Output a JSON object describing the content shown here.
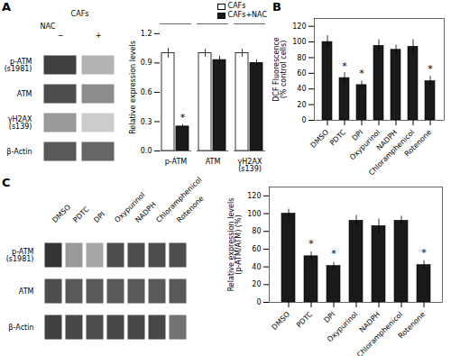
{
  "chart_data": [
    {
      "type": "heatmap",
      "title": "A",
      "annotations": [
        "CAFs"
      ],
      "xlabel": "NAC",
      "x": [
        "−",
        "+"
      ],
      "y": [
        "p-ATM\n(s1981)",
        "ATM",
        "γH2AX\n(s139)",
        "β-Actin"
      ],
      "values": [
        [
          0.25,
          0.7
        ],
        [
          0.3,
          0.55
        ],
        [
          0.6,
          0.8
        ],
        [
          0.35,
          0.4
        ]
      ],
      "zlim": [
        0,
        1
      ]
    },
    {
      "type": "bar",
      "categories": [
        "p-ATM",
        "ATM",
        "γH2AX\n(s139)"
      ],
      "series": [
        {
          "name": "CAFs",
          "color": "#ffffff",
          "values": [
            1.0,
            1.0,
            1.0
          ],
          "errors": [
            0.05,
            0.04,
            0.04
          ]
        },
        {
          "name": "CAFs+NAC",
          "color": "#1a1a1a",
          "values": [
            0.25,
            0.93,
            0.9
          ],
          "errors": [
            0.02,
            0.04,
            0.03
          ]
        }
      ],
      "ylabel": "Relative expression levels",
      "ylim": [
        0,
        1.3
      ],
      "yticks": [
        {
          "value": 0,
          "label": "0.0"
        },
        0.3,
        0.6,
        0.9,
        1.2
      ],
      "legend": "upper right",
      "annotations": [
        {
          "text": "*",
          "category": "p-ATM",
          "series": "CAFs+NAC",
          "y": 0.31
        }
      ]
    },
    {
      "type": "bar",
      "title": "B",
      "categories": [
        "DMSO",
        "PDTC",
        "DPI",
        "Oxypurinol",
        "NADPH",
        "Chloramphenicol",
        "Rotenone"
      ],
      "values": [
        100,
        54,
        45,
        95,
        90,
        94,
        50
      ],
      "errors": [
        8,
        7,
        5,
        8,
        6,
        9,
        6
      ],
      "color": "#1a1a1a",
      "ylabel": "DCF Fluorescence\n(% control cells)",
      "ylim": [
        0,
        130
      ],
      "yticks": [
        0,
        20,
        40,
        60,
        80,
        100,
        120
      ],
      "annotations": [
        {
          "text": "*",
          "category": "PDTC",
          "y": 65
        },
        {
          "text": "*",
          "category": "DPI",
          "y": 56
        },
        {
          "text": "*",
          "category": "Rotenone",
          "y": 61
        }
      ]
    },
    {
      "type": "heatmap",
      "title": "C",
      "x": [
        "DMSO",
        "PDTC",
        "DPI",
        "Oxypurinol",
        "NADPH",
        "Chloramphenicol",
        "Rotenone"
      ],
      "y": [
        "p-ATM\n(s1981)",
        "ATM",
        "β-Actin"
      ],
      "values": [
        [
          0.2,
          0.6,
          0.65,
          0.3,
          0.3,
          0.3,
          0.3
        ],
        [
          0.3,
          0.35,
          0.35,
          0.35,
          0.35,
          0.35,
          0.35
        ],
        [
          0.25,
          0.28,
          0.3,
          0.28,
          0.28,
          0.28,
          0.45
        ]
      ],
      "zlim": [
        0,
        1
      ]
    },
    {
      "type": "bar",
      "categories": [
        "DMSO",
        "PDTC",
        "DPI",
        "Oxypurinol",
        "NADPH",
        "Chloramphenicol",
        "Rotenone"
      ],
      "values": [
        100,
        52,
        41,
        92,
        86,
        92,
        42
      ],
      "errors": [
        5,
        5,
        4,
        6,
        8,
        5,
        5
      ],
      "color": "#1a1a1a",
      "ylabel": "Relative expression levels\n(p-ATM/ATM) (%)",
      "ylim": [
        0,
        130
      ],
      "yticks": [
        0,
        20,
        40,
        60,
        80,
        100,
        120
      ],
      "annotations": [
        {
          "text": "*",
          "category": "PDTC",
          "y": 62
        },
        {
          "text": "*",
          "category": "DPI",
          "y": 51
        },
        {
          "text": "*",
          "category": "Rotenone",
          "y": 52
        }
      ]
    }
  ]
}
